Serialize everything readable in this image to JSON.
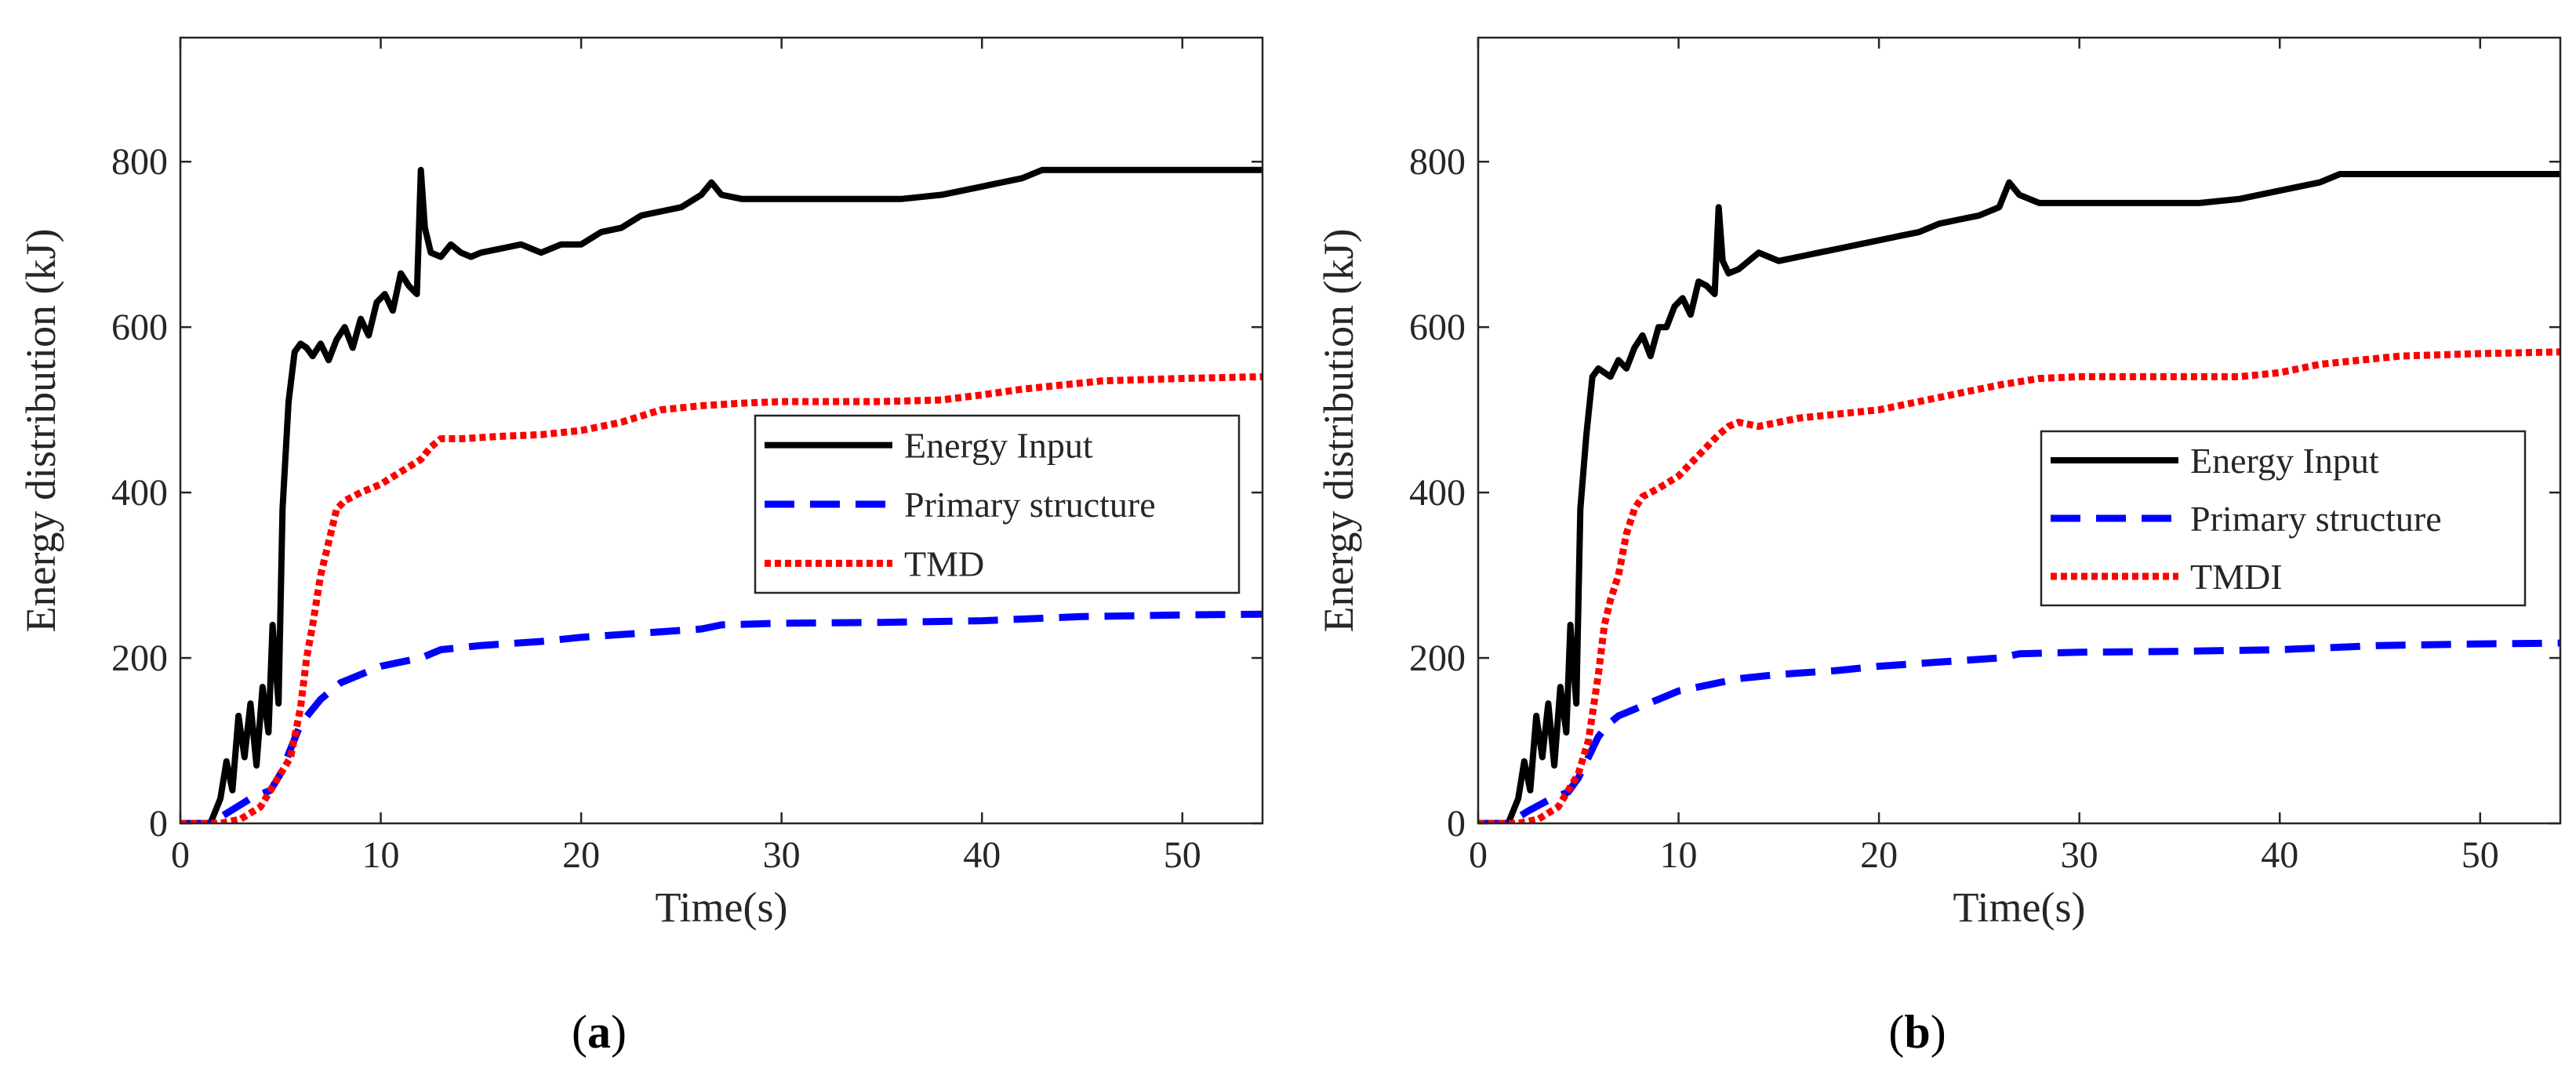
{
  "chart_data": [
    {
      "type": "line",
      "panel_label": "(a)",
      "xlabel": "Time(s)",
      "ylabel": "Energy distribution (kJ)",
      "xlim": [
        0,
        54
      ],
      "ylim": [
        0,
        950
      ],
      "xticks": [
        0,
        10,
        20,
        30,
        40,
        50
      ],
      "yticks": [
        0,
        200,
        400,
        600,
        800
      ],
      "legend_position": "center-right",
      "series": [
        {
          "name": "Energy Input",
          "color": "#000000",
          "style": "solid",
          "x": [
            0,
            1.5,
            2.0,
            2.3,
            2.6,
            2.9,
            3.2,
            3.5,
            3.8,
            4.1,
            4.4,
            4.6,
            4.9,
            5.1,
            5.4,
            5.7,
            6.0,
            6.3,
            6.6,
            7.0,
            7.4,
            7.8,
            8.2,
            8.6,
            9.0,
            9.4,
            9.8,
            10.2,
            10.6,
            11.0,
            11.4,
            11.8,
            12.0,
            12.2,
            12.5,
            13.0,
            13.5,
            14.0,
            14.5,
            15.0,
            16.0,
            17.0,
            18.0,
            19.0,
            20.0,
            21.0,
            22.0,
            23.0,
            24.0,
            25.0,
            26.0,
            26.5,
            27.0,
            28.0,
            30.0,
            32.0,
            34.0,
            36.0,
            38.0,
            40.0,
            42.0,
            43.0,
            45.0,
            48.0,
            50.0,
            54.0
          ],
          "values": [
            0,
            0,
            30,
            75,
            40,
            130,
            80,
            145,
            70,
            165,
            110,
            240,
            145,
            380,
            510,
            570,
            580,
            575,
            565,
            580,
            560,
            585,
            600,
            575,
            610,
            590,
            630,
            640,
            620,
            665,
            650,
            640,
            790,
            720,
            690,
            685,
            700,
            690,
            685,
            690,
            695,
            700,
            690,
            700,
            700,
            715,
            720,
            735,
            740,
            745,
            760,
            775,
            760,
            755,
            755,
            755,
            755,
            755,
            760,
            770,
            780,
            790,
            790,
            790,
            790,
            790
          ]
        },
        {
          "name": "Primary structure",
          "color": "#0000ff",
          "style": "dashed",
          "x": [
            0,
            1.5,
            2.5,
            3.5,
            4.5,
            5.0,
            5.5,
            6.0,
            6.5,
            7.0,
            7.5,
            8.0,
            9.0,
            10.0,
            11.0,
            12.0,
            13.0,
            15.0,
            18.0,
            20.0,
            23.0,
            26.0,
            27.0,
            30.0,
            35.0,
            40.0,
            45.0,
            50.0,
            54.0
          ],
          "values": [
            0,
            0,
            15,
            30,
            40,
            60,
            90,
            120,
            135,
            150,
            160,
            170,
            180,
            190,
            195,
            200,
            210,
            215,
            220,
            225,
            230,
            235,
            240,
            242,
            243,
            245,
            250,
            252,
            253
          ]
        },
        {
          "name": "TMD",
          "color": "#ff0000",
          "style": "dotted",
          "x": [
            0,
            2.0,
            3.0,
            4.0,
            4.5,
            5.0,
            5.5,
            6.0,
            6.3,
            6.6,
            7.0,
            7.4,
            7.8,
            8.2,
            9.0,
            10.0,
            11.0,
            12.0,
            12.5,
            13.0,
            14.0,
            16.0,
            18.0,
            20.0,
            22.0,
            24.0,
            26.0,
            28.0,
            30.0,
            35.0,
            38.0,
            40.0,
            42.0,
            44.0,
            46.0,
            50.0,
            54.0
          ],
          "values": [
            0,
            0,
            5,
            20,
            40,
            60,
            80,
            140,
            200,
            240,
            300,
            340,
            380,
            390,
            400,
            410,
            425,
            440,
            455,
            465,
            465,
            468,
            470,
            475,
            485,
            500,
            505,
            508,
            510,
            510,
            512,
            518,
            525,
            530,
            535,
            538,
            540
          ]
        }
      ]
    },
    {
      "type": "line",
      "panel_label": "(b)",
      "xlabel": "Time(s)",
      "ylabel": "Energy distribution (kJ)",
      "xlim": [
        0,
        54
      ],
      "ylim": [
        0,
        950
      ],
      "xticks": [
        0,
        10,
        20,
        30,
        40,
        50
      ],
      "yticks": [
        0,
        200,
        400,
        600,
        800
      ],
      "legend_position": "center-right",
      "series": [
        {
          "name": "Energy Input",
          "color": "#000000",
          "style": "solid",
          "x": [
            0,
            1.5,
            2.0,
            2.3,
            2.6,
            2.9,
            3.2,
            3.5,
            3.8,
            4.1,
            4.4,
            4.6,
            4.9,
            5.1,
            5.4,
            5.7,
            6.0,
            6.3,
            6.6,
            7.0,
            7.4,
            7.8,
            8.2,
            8.6,
            9.0,
            9.4,
            9.8,
            10.2,
            10.6,
            11.0,
            11.4,
            11.8,
            12.0,
            12.2,
            12.5,
            13.0,
            13.5,
            14.0,
            14.5,
            15.0,
            16.0,
            17.0,
            18.0,
            19.0,
            20.0,
            21.0,
            22.0,
            23.0,
            24.0,
            25.0,
            26.0,
            26.5,
            27.0,
            28.0,
            30.0,
            32.0,
            34.0,
            36.0,
            38.0,
            40.0,
            42.0,
            43.0,
            45.0,
            48.0,
            50.0,
            54.0
          ],
          "values": [
            0,
            0,
            30,
            75,
            40,
            130,
            80,
            145,
            70,
            165,
            110,
            240,
            145,
            380,
            470,
            540,
            550,
            545,
            540,
            560,
            550,
            575,
            590,
            565,
            600,
            600,
            625,
            635,
            615,
            655,
            650,
            640,
            745,
            680,
            665,
            670,
            680,
            690,
            685,
            680,
            685,
            690,
            695,
            700,
            705,
            710,
            715,
            725,
            730,
            735,
            745,
            775,
            760,
            750,
            750,
            750,
            750,
            750,
            755,
            765,
            775,
            785,
            785,
            785,
            785,
            785
          ]
        },
        {
          "name": "Primary structure",
          "color": "#0000ff",
          "style": "dashed",
          "x": [
            0,
            1.5,
            2.5,
            3.5,
            4.5,
            5.0,
            5.5,
            6.0,
            6.5,
            7.0,
            7.5,
            8.0,
            9.0,
            10.0,
            11.0,
            12.0,
            13.0,
            15.0,
            18.0,
            20.0,
            23.0,
            26.0,
            27.0,
            30.0,
            35.0,
            40.0,
            45.0,
            50.0,
            54.0
          ],
          "values": [
            0,
            0,
            15,
            28,
            38,
            55,
            80,
            105,
            120,
            130,
            135,
            140,
            150,
            160,
            165,
            170,
            175,
            180,
            185,
            190,
            195,
            200,
            205,
            207,
            208,
            210,
            215,
            217,
            218
          ]
        },
        {
          "name": "TMDI",
          "color": "#ff0000",
          "style": "dotted",
          "x": [
            0,
            2.0,
            3.0,
            4.0,
            4.5,
            5.0,
            5.5,
            6.0,
            6.3,
            6.6,
            7.0,
            7.4,
            7.8,
            8.2,
            9.0,
            10.0,
            11.0,
            12.0,
            12.5,
            13.0,
            14.0,
            16.0,
            18.0,
            20.0,
            22.0,
            24.0,
            26.0,
            28.0,
            30.0,
            35.0,
            38.0,
            40.0,
            42.0,
            44.0,
            46.0,
            50.0,
            54.0
          ],
          "values": [
            0,
            0,
            5,
            20,
            40,
            60,
            100,
            180,
            240,
            270,
            300,
            350,
            380,
            395,
            405,
            420,
            445,
            470,
            480,
            485,
            480,
            490,
            495,
            500,
            510,
            520,
            530,
            538,
            540,
            540,
            540,
            545,
            555,
            560,
            565,
            568,
            570
          ]
        }
      ]
    }
  ]
}
